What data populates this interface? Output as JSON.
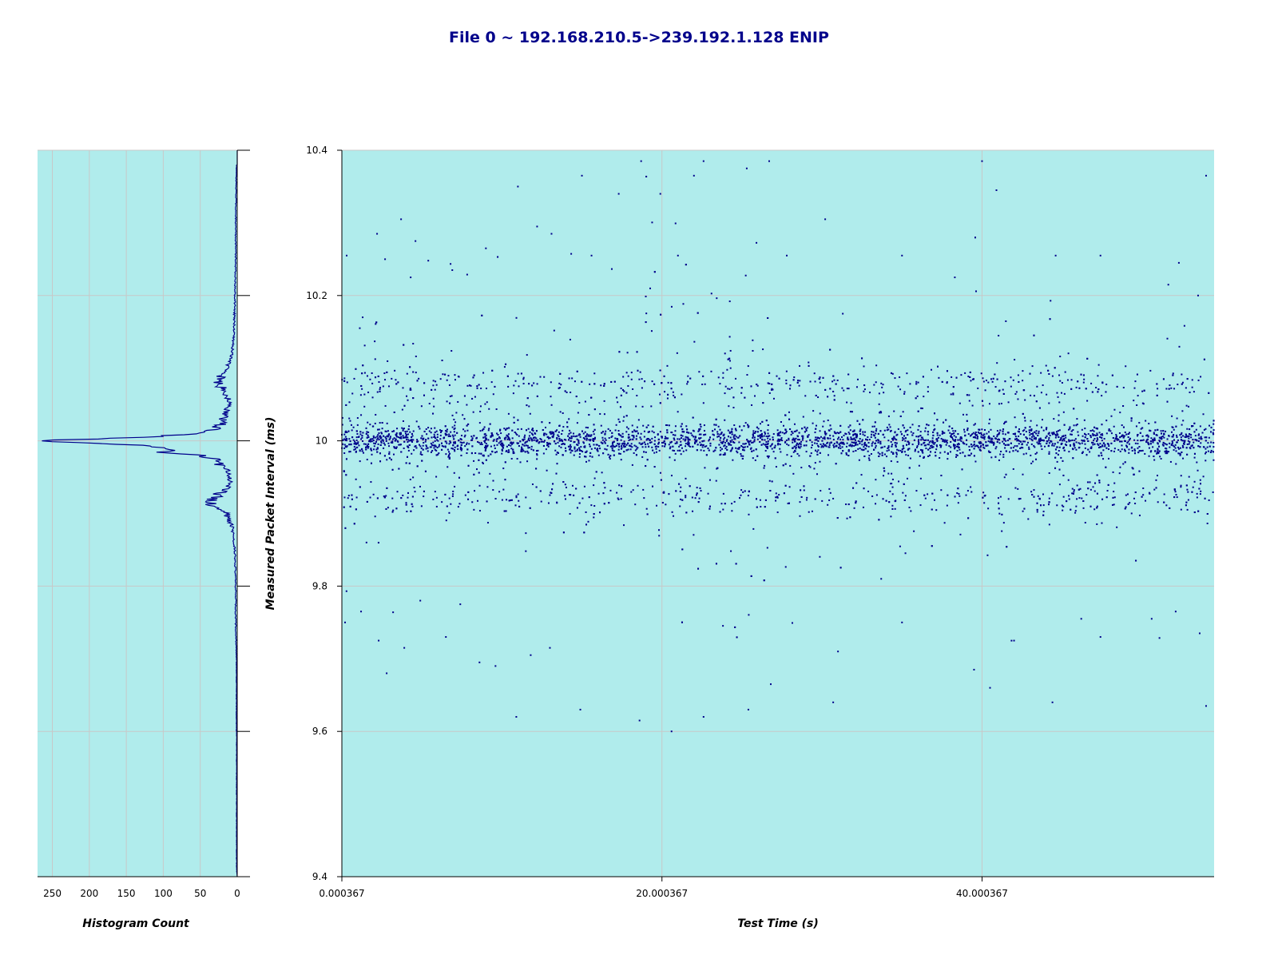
{
  "title": "File 0 ~ 192.168.210.5->239.192.1.128 ENIP",
  "colors": {
    "plot_background": "#b0ecec",
    "marker": "#00008b",
    "title": "#00008b",
    "gridline": "#c8c8c8",
    "axis": "#000000"
  },
  "chart_data": [
    {
      "type": "scatter",
      "role": "main",
      "xlabel": "Test Time (s)",
      "ylabel": "Measured Packet Interval (ms)",
      "xlim": [
        0.000367,
        54.5
      ],
      "ylim": [
        9.4,
        10.4
      ],
      "x_ticks": [
        0.000367,
        20.000367,
        40.000367
      ],
      "x_tick_labels": [
        "0.000367",
        "20.000367",
        "40.000367"
      ],
      "y_ticks": [
        9.4,
        9.6,
        9.8,
        10,
        10.2,
        10.4
      ],
      "y_tick_labels": [
        "9.4",
        "9.6",
        "9.8",
        "10",
        "10.2",
        "10.4"
      ],
      "grid": true,
      "marker_color": "#00008b",
      "point_count": 5400,
      "distribution": {
        "center": 10.0,
        "core_half_width": 0.02,
        "side_bands": [
          9.92,
          10.08
        ],
        "outlier_range": [
          9.6,
          10.39
        ],
        "dispersion_peak_x": [
          18.5,
          26.0
        ]
      },
      "points": [
        [
          0.3,
          10.255
        ],
        [
          2.2,
          10.285
        ],
        [
          2.7,
          10.25
        ],
        [
          3.7,
          10.305
        ],
        [
          4.6,
          10.275
        ],
        [
          5.4,
          10.248
        ],
        [
          6.9,
          10.235
        ],
        [
          9.0,
          10.265
        ],
        [
          11.0,
          10.35
        ],
        [
          12.2,
          10.295
        ],
        [
          13.1,
          10.285
        ],
        [
          15.0,
          10.365
        ],
        [
          15.6,
          10.255
        ],
        [
          17.3,
          10.34
        ],
        [
          18.7,
          10.385
        ],
        [
          19.9,
          10.34
        ],
        [
          21.0,
          10.255
        ],
        [
          22.0,
          10.365
        ],
        [
          22.6,
          10.385
        ],
        [
          25.3,
          10.375
        ],
        [
          26.7,
          10.385
        ],
        [
          27.8,
          10.255
        ],
        [
          30.2,
          10.305
        ],
        [
          31.3,
          10.175
        ],
        [
          35.0,
          10.255
        ],
        [
          38.3,
          10.225
        ],
        [
          40.0,
          10.385
        ],
        [
          40.9,
          10.345
        ],
        [
          44.6,
          10.255
        ],
        [
          47.4,
          10.255
        ],
        [
          52.3,
          10.245
        ],
        [
          54.0,
          10.365
        ],
        [
          53.5,
          10.2
        ],
        [
          1.3,
          10.17
        ],
        [
          4.3,
          10.225
        ],
        [
          0.2,
          9.75
        ],
        [
          1.2,
          9.765
        ],
        [
          2.3,
          9.725
        ],
        [
          2.8,
          9.68
        ],
        [
          3.9,
          9.715
        ],
        [
          4.9,
          9.78
        ],
        [
          6.5,
          9.73
        ],
        [
          7.4,
          9.775
        ],
        [
          8.6,
          9.695
        ],
        [
          9.6,
          9.69
        ],
        [
          10.9,
          9.62
        ],
        [
          11.8,
          9.705
        ],
        [
          13.0,
          9.715
        ],
        [
          14.9,
          9.63
        ],
        [
          18.6,
          9.615
        ],
        [
          20.6,
          9.6
        ],
        [
          22.6,
          9.62
        ],
        [
          25.4,
          9.63
        ],
        [
          26.8,
          9.665
        ],
        [
          30.7,
          9.64
        ],
        [
          31.0,
          9.71
        ],
        [
          33.7,
          9.81
        ],
        [
          35.0,
          9.75
        ],
        [
          39.5,
          9.685
        ],
        [
          40.5,
          9.66
        ],
        [
          44.4,
          9.64
        ],
        [
          46.2,
          9.755
        ],
        [
          47.4,
          9.73
        ],
        [
          50.6,
          9.755
        ],
        [
          53.6,
          9.735
        ],
        [
          54.0,
          9.635
        ],
        [
          42.0,
          9.725
        ],
        [
          52.1,
          9.765
        ]
      ]
    },
    {
      "type": "line",
      "role": "histogram",
      "orientation": "horizontal",
      "xlabel": "Histogram Count",
      "ylim": [
        9.4,
        10.4
      ],
      "xlim": [
        270,
        0
      ],
      "x_ticks": [
        250,
        200,
        150,
        100,
        50,
        0
      ],
      "x_tick_labels": [
        "250",
        "200",
        "150",
        "100",
        "50",
        "0"
      ],
      "grid": true,
      "line_color": "#00008b",
      "bins": [
        [
          10.38,
          1
        ],
        [
          10.3,
          2
        ],
        [
          10.25,
          2
        ],
        [
          10.2,
          3
        ],
        [
          10.15,
          4
        ],
        [
          10.12,
          6
        ],
        [
          10.1,
          12
        ],
        [
          10.09,
          20
        ],
        [
          10.08,
          24
        ],
        [
          10.07,
          18
        ],
        [
          10.06,
          12
        ],
        [
          10.05,
          10
        ],
        [
          10.04,
          14
        ],
        [
          10.03,
          18
        ],
        [
          10.02,
          22
        ],
        [
          10.015,
          35
        ],
        [
          10.01,
          60
        ],
        [
          10.005,
          120
        ],
        [
          10.0,
          270
        ],
        [
          9.998,
          230
        ],
        [
          9.995,
          150
        ],
        [
          9.99,
          80
        ],
        [
          9.985,
          103
        ],
        [
          9.98,
          40
        ],
        [
          9.97,
          25
        ],
        [
          9.96,
          14
        ],
        [
          9.95,
          10
        ],
        [
          9.94,
          8
        ],
        [
          9.93,
          20
        ],
        [
          9.92,
          32
        ],
        [
          9.91,
          30
        ],
        [
          9.9,
          14
        ],
        [
          9.88,
          6
        ],
        [
          9.85,
          3
        ],
        [
          9.8,
          2
        ],
        [
          9.75,
          2
        ],
        [
          9.7,
          1
        ],
        [
          9.65,
          1
        ],
        [
          9.6,
          1
        ]
      ]
    }
  ]
}
